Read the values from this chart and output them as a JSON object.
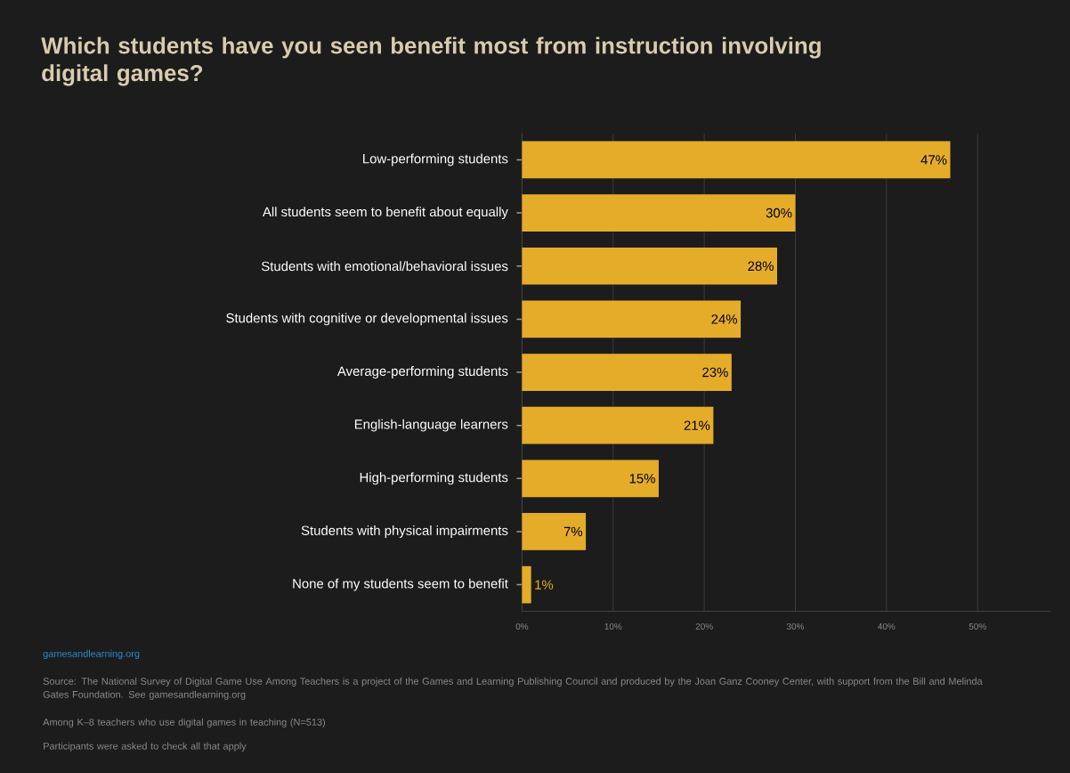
{
  "chart_data": {
    "type": "bar",
    "orientation": "horizontal",
    "title": "Which students have you seen benefit most from instruction involving digital games?",
    "categories": [
      "Low-performing students",
      "All students seem to benefit about equally",
      "Students with emotional/behavioral issues",
      "Students with cognitive or developmental issues",
      "Average-performing students",
      "English-language learners",
      "High-performing students",
      "Students with physical impairments",
      "None of my students seem to benefit"
    ],
    "values": [
      47,
      30,
      28,
      24,
      23,
      21,
      15,
      7,
      1
    ],
    "value_labels": [
      "47%",
      "30%",
      "28%",
      "24%",
      "23%",
      "21%",
      "15%",
      "7%",
      "1%"
    ],
    "color": "#e5ac2a",
    "xlim": [
      0,
      58
    ],
    "xticks": [
      {
        "value": 0,
        "label": "0%"
      },
      {
        "value": 10,
        "label": "10%"
      },
      {
        "value": 20,
        "label": "20%"
      },
      {
        "value": 30,
        "label": "30%"
      },
      {
        "value": 40,
        "label": "40%"
      },
      {
        "value": 50,
        "label": "50%"
      }
    ],
    "grid": "x",
    "annotations": [
      "gamesandlearning.org",
      "Source: The National Survey of Digital Game Use Among Teachers is a project of the Games and Learning Publishing Council and produced by the Joan Ganz Cooney Center, with support from the Bill and Melinda Gates Foundation. See gamesandlearning.org",
      "Among K–8 teachers who use digital games in teaching (N=513)",
      "Participants were asked to check all that apply"
    ]
  }
}
